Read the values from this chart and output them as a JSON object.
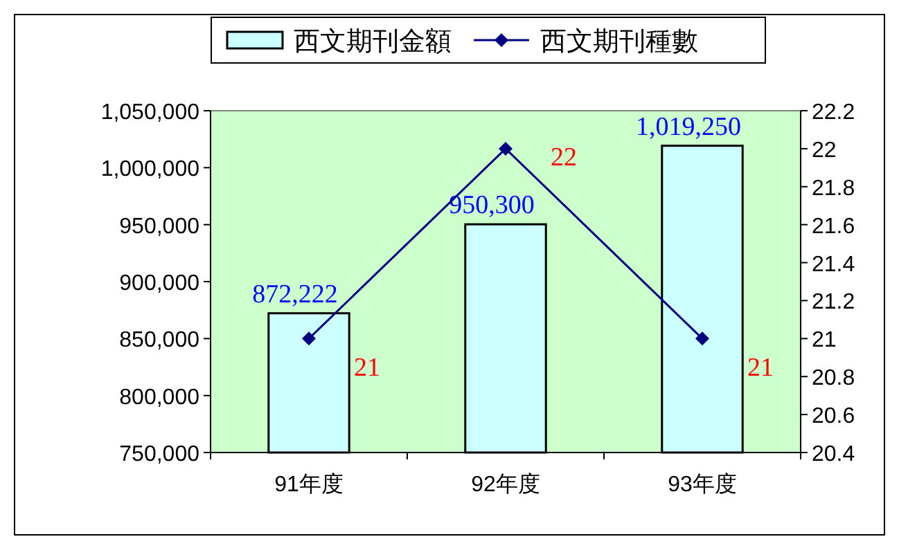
{
  "chart_data": {
    "type": "bar",
    "categories": [
      "91年度",
      "92年度",
      "93年度"
    ],
    "series": [
      {
        "name": "西文期刊金額",
        "color": "#ccffff",
        "values": [
          872222,
          950300,
          1019250
        ],
        "value_labels": [
          "872,222",
          "950,300",
          "1,019,250"
        ]
      },
      {
        "name": "西文期刊種數",
        "type": "line",
        "axis": "y2",
        "color": "#000080",
        "values": [
          21,
          22,
          21
        ]
      }
    ],
    "ylim": [
      750000,
      1050000
    ],
    "yticks": [
      {
        "value": 750000,
        "label": "750,000"
      },
      {
        "value": 800000,
        "label": "800,000"
      },
      {
        "value": 850000,
        "label": "850,000"
      },
      {
        "value": 900000,
        "label": "900,000"
      },
      {
        "value": 950000,
        "label": "950,000"
      },
      {
        "value": 1000000,
        "label": "1,000,000"
      },
      {
        "value": 1050000,
        "label": "1,050,000"
      }
    ],
    "y2lim": [
      20.4,
      22.2
    ],
    "y2ticks": [
      20.4,
      20.6,
      20.8,
      21,
      21.2,
      21.4,
      21.6,
      21.8,
      22,
      22.2
    ],
    "marker": "diamond",
    "data_labels": true,
    "legend": "top",
    "grid": false
  }
}
